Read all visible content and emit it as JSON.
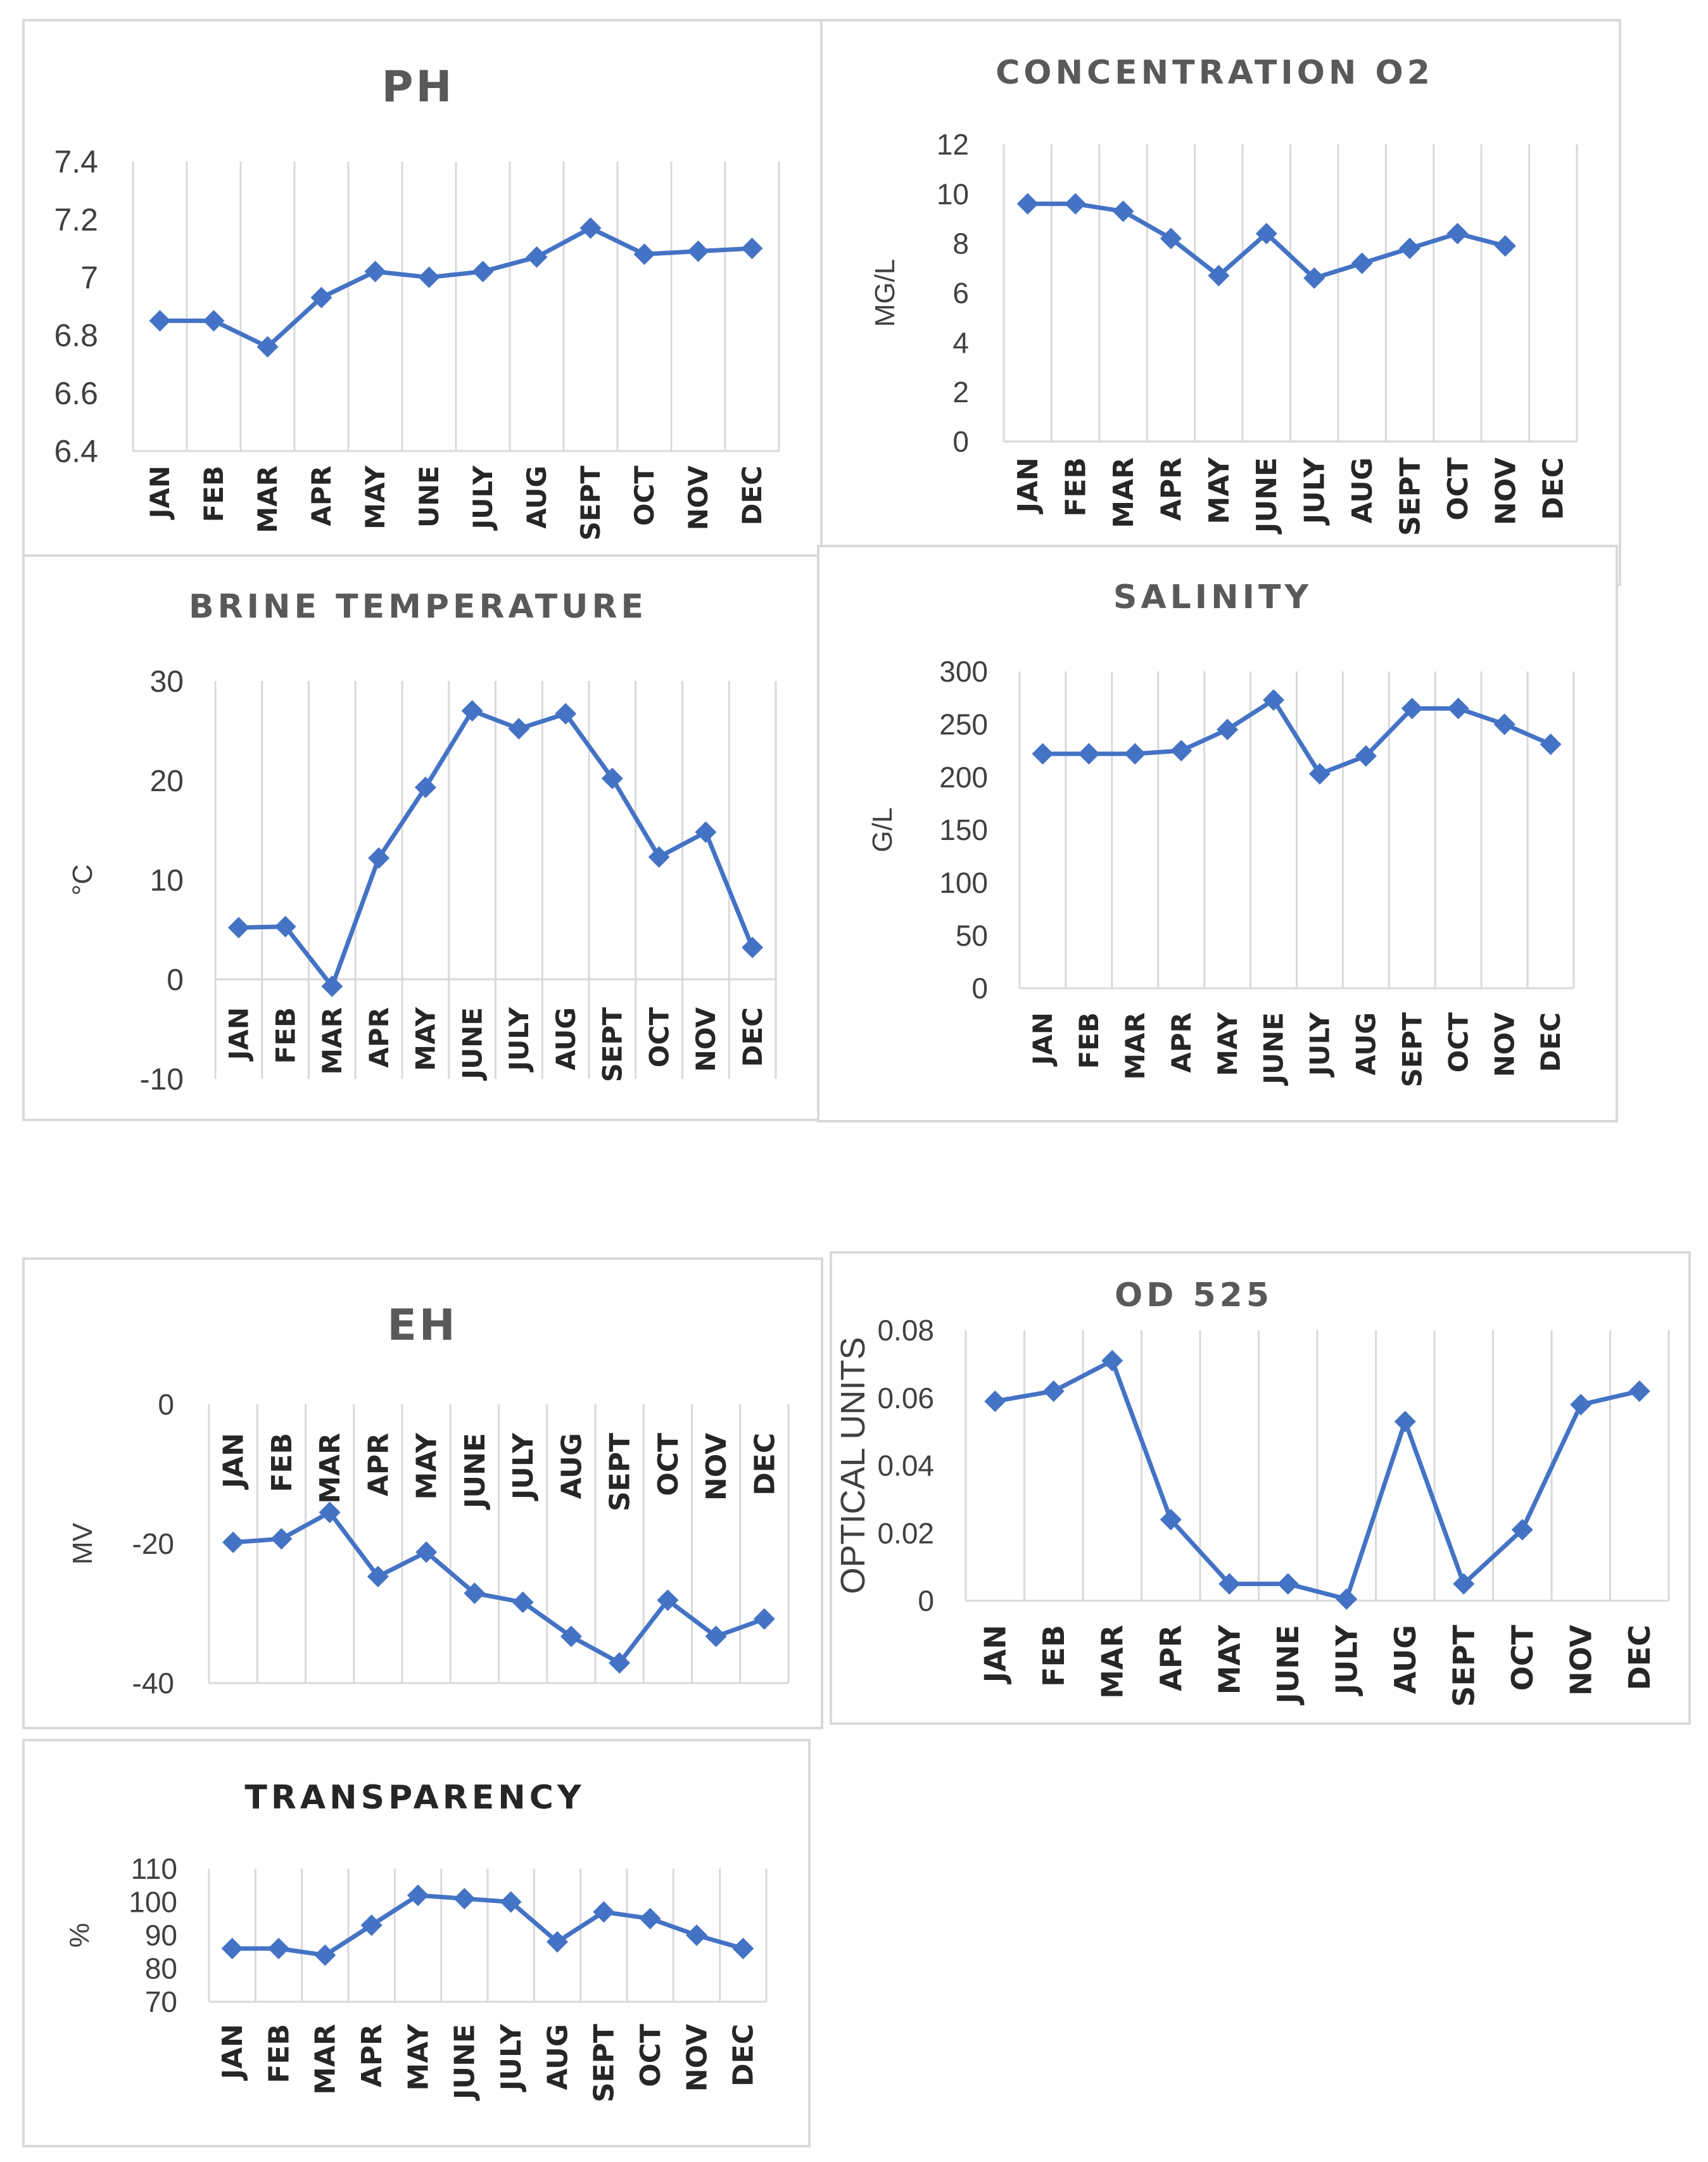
{
  "colors": {
    "series": "#4472c4",
    "grid": "#d9d9d9",
    "title": "#595959",
    "tick": "#404040"
  },
  "chart_data": [
    {
      "type": "line",
      "title": "PH",
      "ylabel": "",
      "categories": [
        "JAN",
        "FEB",
        "MAR",
        "APR",
        "MAY",
        "UNE",
        "JULY",
        "AUG",
        "SEPT",
        "OCT",
        "NOV",
        "DEC"
      ],
      "ylim": [
        6.4,
        7.4
      ],
      "yticks": [
        "6.4",
        "6.6",
        "6.8",
        "7",
        "7.2",
        "7.4"
      ],
      "series": [
        {
          "name": "PH",
          "values": [
            6.85,
            6.85,
            6.76,
            6.93,
            7.02,
            7.0,
            7.02,
            7.07,
            7.17,
            7.08,
            7.09,
            7.1
          ]
        }
      ]
    },
    {
      "type": "line",
      "title": "CONCENTRATION O2",
      "ylabel": "MG/L",
      "categories": [
        "JAN",
        "FEB",
        "MAR",
        "APR",
        "MAY",
        "JUNE",
        "JULY",
        "AUG",
        "SEPT",
        "OCT",
        "NOV",
        "DEC"
      ],
      "ylim": [
        0,
        12
      ],
      "yticks": [
        "0",
        "2",
        "4",
        "6",
        "8",
        "10",
        "12"
      ],
      "series": [
        {
          "name": "O2",
          "values": [
            9.6,
            9.6,
            9.3,
            8.2,
            6.7,
            8.4,
            6.6,
            7.2,
            7.8,
            8.4,
            7.9,
            null
          ]
        }
      ]
    },
    {
      "type": "line",
      "title": "BRINE  TEMPERATURE",
      "ylabel": "°C",
      "categories": [
        "JAN",
        "FEB",
        "MAR",
        "APR",
        "MAY",
        "JUNE",
        "JULY",
        "AUG",
        "SEPT",
        "OCT",
        "NOV",
        "DEC"
      ],
      "ylim": [
        -10,
        30
      ],
      "yticks": [
        "-10",
        "0",
        "10",
        "20",
        "30"
      ],
      "series": [
        {
          "name": "Temperature",
          "values": [
            5.2,
            5.3,
            -0.7,
            12.2,
            19.3,
            27.0,
            25.2,
            26.7,
            20.2,
            12.3,
            14.8,
            3.2
          ]
        }
      ]
    },
    {
      "type": "line",
      "title": "SALINITY",
      "ylabel": "G/L",
      "categories": [
        "JAN",
        "FEB",
        "MAR",
        "APR",
        "MAY",
        "JUNE",
        "JULY",
        "AUG",
        "SEPT",
        "OCT",
        "NOV",
        "DEC"
      ],
      "ylim": [
        0,
        300
      ],
      "yticks": [
        "0",
        "50",
        "100",
        "150",
        "200",
        "250",
        "300"
      ],
      "series": [
        {
          "name": "Salinity",
          "values": [
            222,
            222,
            222,
            225,
            245,
            273,
            203,
            220,
            265,
            265,
            250,
            231
          ]
        }
      ]
    },
    {
      "type": "line",
      "title": "EH",
      "ylabel": "MV",
      "categories": [
        "JAN",
        "FEB",
        "MAR",
        "APR",
        "MAY",
        "JUNE",
        "JULY",
        "AUG",
        "SEPT",
        "OCT",
        "NOV",
        "DEC"
      ],
      "ylim": [
        -40,
        0
      ],
      "yticks": [
        "0",
        "-20",
        "-40"
      ],
      "series": [
        {
          "name": "EH",
          "values": [
            -19.8,
            -19.3,
            -15.5,
            -24.7,
            -21.2,
            -27.1,
            -28.4,
            -33.3,
            -37.1,
            -28.1,
            -33.3,
            -30.8
          ]
        }
      ]
    },
    {
      "type": "line",
      "title": "OD 525",
      "ylabel": "OPTICAL UNITS",
      "categories": [
        "JAN",
        "FEB",
        "MAR",
        "APR",
        "MAY",
        "JUNE",
        "JULY",
        "AUG",
        "SEPT",
        "OCT",
        "NOV",
        "DEC"
      ],
      "ylim": [
        0,
        0.08
      ],
      "yticks": [
        "0",
        "0.02",
        "0.04",
        "0.06",
        "0.08"
      ],
      "series": [
        {
          "name": "OD 525",
          "values": [
            0.059,
            0.062,
            0.071,
            0.024,
            0.005,
            0.005,
            0.0005,
            0.053,
            0.005,
            0.021,
            0.058,
            0.062
          ]
        }
      ]
    },
    {
      "type": "line",
      "title": "TRANSPARENCY",
      "ylabel": "%",
      "categories": [
        "JAN",
        "FEB",
        "MAR",
        "APR",
        "MAY",
        "JUNE",
        "JULY",
        "AUG",
        "SEPT",
        "OCT",
        "NOV",
        "DEC"
      ],
      "ylim": [
        70,
        110
      ],
      "yticks": [
        "70",
        "80",
        "90",
        "100",
        "110"
      ],
      "series": [
        {
          "name": "Transparency",
          "values": [
            86,
            86,
            84,
            93,
            102,
            101,
            100,
            88,
            97,
            95,
            90,
            86
          ]
        }
      ]
    }
  ]
}
